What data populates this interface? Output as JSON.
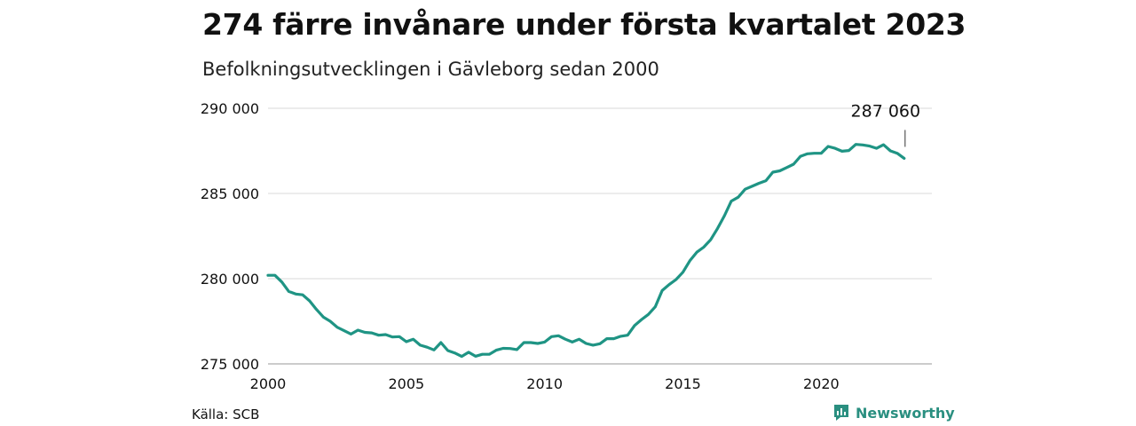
{
  "header": {
    "title": "274 färre invånare under första kvartalet 2023",
    "subtitle": "Befolkningsutvecklingen i Gävleborg sedan 2000"
  },
  "footer": {
    "source": "Källa: SCB",
    "brand": "Newsworthy",
    "brand_icon": "newsworthy-logo-icon"
  },
  "chart_data": {
    "type": "line",
    "title": "274 färre invånare under första kvartalet 2023",
    "subtitle": "Befolkningsutvecklingen i Gävleborg sedan 2000",
    "xlabel": "",
    "ylabel": "",
    "xlim": [
      2000,
      2024
    ],
    "ylim": [
      275000,
      290000
    ],
    "x_ticks": [
      2000,
      2005,
      2010,
      2015,
      2020
    ],
    "x_tick_labels": [
      "2000",
      "2005",
      "2010",
      "2015",
      "2020"
    ],
    "y_ticks": [
      275000,
      280000,
      285000,
      290000
    ],
    "y_tick_labels": [
      "275 000",
      "280 000",
      "285 000",
      "290 000"
    ],
    "grid": "horizontal",
    "line_color": "#1f9484",
    "annotation": {
      "x": 2023.0,
      "y": 287060,
      "label": "287 060"
    },
    "series": [
      {
        "x": [
          2000.0,
          2000.25,
          2000.5,
          2000.75,
          2001.0,
          2001.25,
          2001.5,
          2001.75,
          2002.0,
          2002.25,
          2002.5,
          2002.75,
          2003.0,
          2003.25,
          2003.5,
          2003.75,
          2004.0,
          2004.25,
          2004.5,
          2004.75,
          2005.0,
          2005.25,
          2005.5,
          2005.75,
          2006.0,
          2006.25,
          2006.5,
          2006.75,
          2007.0,
          2007.25,
          2007.5,
          2007.75,
          2008.0,
          2008.25,
          2008.5,
          2008.75,
          2009.0,
          2009.25,
          2009.5,
          2009.75,
          2010.0,
          2010.25,
          2010.5,
          2010.75,
          2011.0,
          2011.25,
          2011.5,
          2011.75,
          2012.0,
          2012.25,
          2012.5,
          2012.75,
          2013.0,
          2013.25,
          2013.5,
          2013.75,
          2014.0,
          2014.25,
          2014.5,
          2014.75,
          2015.0,
          2015.25,
          2015.5,
          2015.75,
          2016.0,
          2016.25,
          2016.5,
          2016.75,
          2017.0,
          2017.25,
          2017.5,
          2017.75,
          2018.0,
          2018.25,
          2018.5,
          2018.75,
          2019.0,
          2019.25,
          2019.5,
          2019.75,
          2020.0,
          2020.25,
          2020.5,
          2020.75,
          2021.0,
          2021.25,
          2021.5,
          2021.75,
          2022.0,
          2022.25,
          2022.5,
          2022.75,
          2023.0
        ],
        "values": [
          280200,
          280200,
          279800,
          279250,
          279100,
          279050,
          278700,
          278200,
          277750,
          277500,
          277150,
          276950,
          276750,
          276980,
          276850,
          276820,
          276680,
          276720,
          276580,
          276600,
          276300,
          276450,
          276100,
          275980,
          275820,
          276250,
          275780,
          275640,
          275440,
          275680,
          275450,
          275560,
          275560,
          275800,
          275910,
          275900,
          275840,
          276250,
          276250,
          276200,
          276280,
          276600,
          276650,
          276450,
          276280,
          276450,
          276200,
          276100,
          276180,
          276480,
          276480,
          276620,
          276680,
          277250,
          277600,
          277900,
          278350,
          279300,
          279650,
          279950,
          280380,
          281050,
          281550,
          281850,
          282280,
          282950,
          283700,
          284550,
          284780,
          285250,
          285420,
          285600,
          285750,
          286250,
          286330,
          286520,
          286720,
          287180,
          287330,
          287360,
          287360,
          287760,
          287650,
          287480,
          287520,
          287880,
          287850,
          287780,
          287650,
          287860,
          287500,
          287360,
          287060
        ]
      }
    ]
  }
}
